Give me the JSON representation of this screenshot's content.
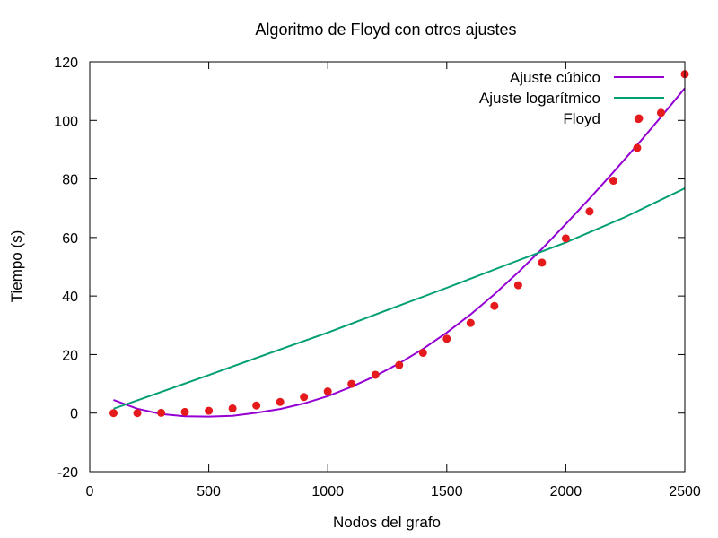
{
  "chart_data": {
    "type": "scatter",
    "title": "Algoritmo de Floyd con otros ajustes",
    "xlabel": "Nodos del grafo",
    "ylabel": "Tiempo (s)",
    "xlim": [
      0,
      2500
    ],
    "ylim": [
      -20,
      120
    ],
    "x_ticks": [
      0,
      500,
      1000,
      1500,
      2000,
      2500
    ],
    "y_ticks": [
      -20,
      0,
      20,
      40,
      60,
      80,
      100,
      120
    ],
    "grid": false,
    "legend_position": "top-right",
    "series": [
      {
        "name": "Ajuste cúbico",
        "kind": "line",
        "color": "#9400d3",
        "x": [
          100,
          150,
          200,
          300,
          400,
          500,
          600,
          700,
          800,
          900,
          1000,
          1100,
          1200,
          1300,
          1400,
          1500,
          1600,
          1700,
          1800,
          1900,
          2000,
          2100,
          2200,
          2300,
          2400,
          2500
        ],
        "y": [
          4.5,
          3.0,
          1.5,
          -0.3,
          -1.1,
          -1.2,
          -0.9,
          0.1,
          1.4,
          3.3,
          5.8,
          9.0,
          12.7,
          17.0,
          21.9,
          27.5,
          33.7,
          40.6,
          48.1,
          56.1,
          64.6,
          73.3,
          82.3,
          91.6,
          101.2,
          111.0
        ]
      },
      {
        "name": "Ajuste logarítmico",
        "kind": "line",
        "color": "#009e73",
        "x": [
          100,
          250,
          500,
          750,
          1000,
          1250,
          1500,
          1750,
          2000,
          2250,
          2500
        ],
        "y": [
          1.5,
          5.8,
          13.0,
          20.3,
          27.5,
          35.2,
          42.8,
          50.6,
          58.3,
          67.0,
          76.8
        ]
      },
      {
        "name": "Floyd",
        "kind": "points",
        "color": "#e41a1c",
        "x": [
          100,
          200,
          300,
          400,
          500,
          600,
          700,
          800,
          900,
          1000,
          1100,
          1200,
          1300,
          1400,
          1500,
          1600,
          1700,
          1800,
          1900,
          2000,
          2100,
          2200,
          2300,
          2305,
          2400,
          2500
        ],
        "y": [
          0,
          0,
          0.1,
          0.4,
          0.8,
          1.6,
          2.6,
          3.8,
          5.5,
          7.4,
          10.0,
          13.1,
          16.4,
          20.6,
          25.4,
          30.8,
          36.6,
          43.7,
          51.4,
          59.7,
          68.9,
          79.4,
          90.6,
          100.5,
          102.6,
          115.8
        ]
      }
    ]
  }
}
